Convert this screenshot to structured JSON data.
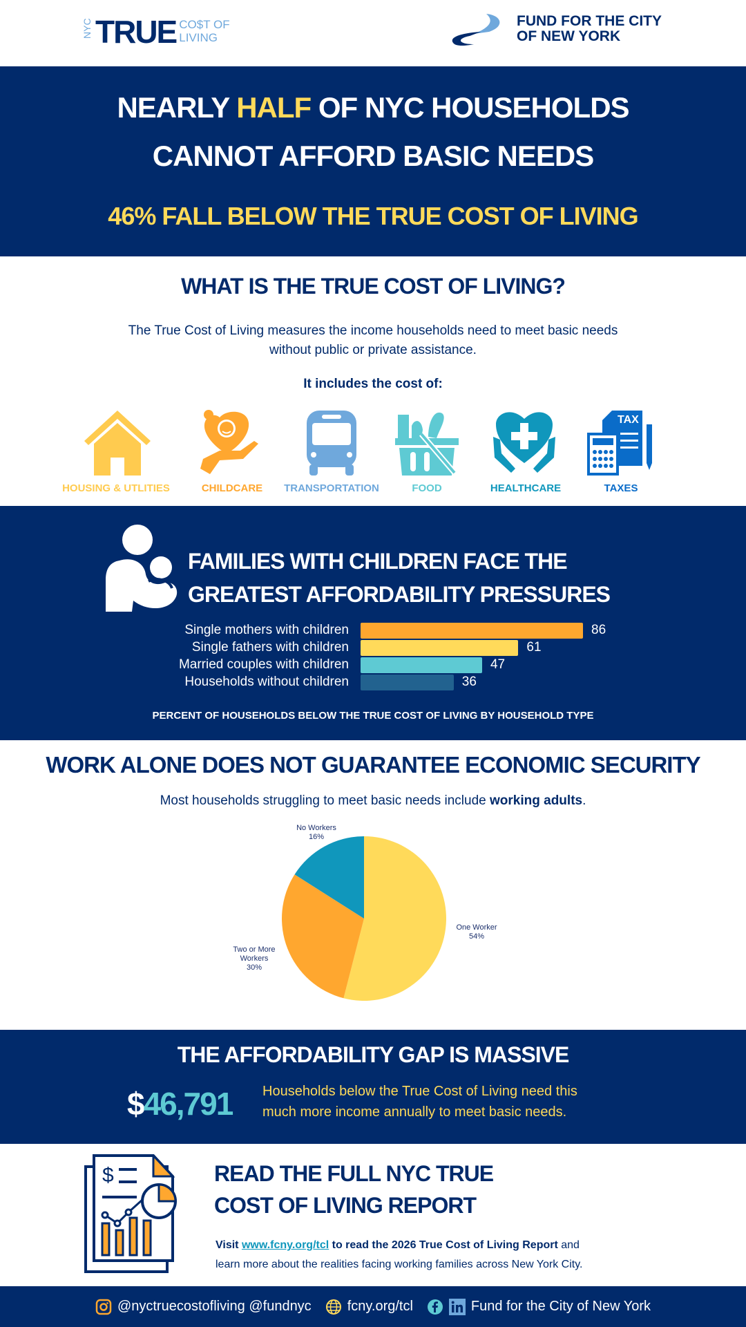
{
  "header": {
    "logo_left": {
      "nyc": "NYC",
      "true": "TRUE",
      "cost_of": "CO$T OF",
      "living": "LIVING"
    },
    "logo_right": {
      "line1": "FUND FOR THE CITY",
      "line2": "OF NEW YORK"
    }
  },
  "hero": {
    "line1_pre": "NEARLY ",
    "line1_highlight": "HALF",
    "line1_post": " OF NYC HOUSEHOLDS",
    "line2": "CANNOT AFFORD BASIC NEEDS",
    "subline": "46% FALL BELOW THE TRUE COST OF LIVING"
  },
  "definition": {
    "heading": "WHAT IS THE TRUE COST OF LIVING?",
    "text_line1": "The True Cost of Living measures the income households need to meet basic needs",
    "text_line2": "without public or private assistance.",
    "includes": "It includes the cost of:",
    "items": [
      {
        "label": "HOUSING & UTLITIES",
        "icon": "house-icon",
        "color": "#FFCB4F"
      },
      {
        "label": "CHILDCARE",
        "icon": "baby-in-hand-icon",
        "color": "#FFA72F"
      },
      {
        "label": "TRANSPORTATION",
        "icon": "bus-icon",
        "color": "#6FA8DC"
      },
      {
        "label": "FOOD",
        "icon": "grocery-basket-icon",
        "color": "#5ECAD3"
      },
      {
        "label": "HEALTHCARE",
        "icon": "heart-cross-hands-icon",
        "color": "#1097BC"
      },
      {
        "label": "TAXES",
        "icon": "tax-form-calculator-icon",
        "color": "#0A6CC9"
      }
    ]
  },
  "families": {
    "heading_line1": "FAMILIES WITH CHILDREN FACE THE",
    "heading_line2": "GREATEST AFFORDABILITY PRESSURES"
  },
  "chart_data": [
    {
      "type": "bar",
      "orientation": "horizontal",
      "categories": [
        "Single mothers with children",
        "Single fathers with children",
        "Married couples with children",
        "Households without children"
      ],
      "values": [
        86,
        61,
        47,
        36
      ],
      "colors": [
        "#FFA72F",
        "#FFDA5A",
        "#5ECAD3",
        "#22628F"
      ],
      "title": "PERCENT OF HOUSEHOLDS BELOW THE TRUE COST OF LIVING BY HOUSEHOLD TYPE",
      "data_labels": true
    },
    {
      "type": "pie",
      "slices": [
        {
          "label": "One Worker",
          "value": 54,
          "text": "54%",
          "color": "#FFDA5A"
        },
        {
          "label": "Two or More Workers",
          "value": 30,
          "text": "30%",
          "color": "#FFA72F"
        },
        {
          "label": "No Workers",
          "value": 16,
          "text": "16%",
          "color": "#1097BC"
        }
      ]
    }
  ],
  "work": {
    "heading": "WORK ALONE DOES NOT GUARANTEE ECONOMIC SECURITY",
    "sub_pre": "Most households struggling to meet basic needs include ",
    "sub_bold": "working adults",
    "sub_post": "."
  },
  "gap": {
    "heading": "THE AFFORDABILITY GAP IS MASSIVE",
    "dollar": "$",
    "amount": "46,791",
    "text_line1": "Households below the True Cost of Living need this",
    "text_line2": "much more income annually to meet basic needs."
  },
  "report": {
    "heading_line1": "READ THE FULL NYC TRUE",
    "heading_line2": "COST OF LIVING REPORT",
    "visit": "Visit ",
    "link": "www.fcny.org/tcl",
    "bold_text": " to read the 2026 True Cost of Living Report",
    "rest_line1": " and",
    "line2": "learn more about the realities facing working families across New York City."
  },
  "footer": {
    "social": "@nyctruecostofliving @fundnyc",
    "web": "fcny.org/tcl",
    "org": "Fund for the City of New York"
  }
}
